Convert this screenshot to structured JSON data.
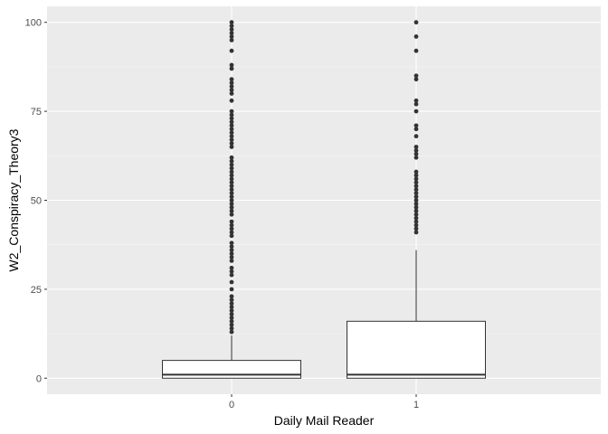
{
  "chart_data": {
    "type": "boxplot",
    "title": "",
    "xlabel": "Daily Mail Reader",
    "ylabel": "W2_Conspiracy_Theory3",
    "ylim": [
      -4.5,
      104.5
    ],
    "yticks": [
      0,
      25,
      50,
      75,
      100
    ],
    "categories": [
      "0",
      "1"
    ],
    "boxes": [
      {
        "category": "0",
        "min": 0,
        "q1": 0,
        "median": 1,
        "q3": 5,
        "whisker_high": 12,
        "outliers": [
          13,
          14,
          15,
          16,
          17,
          18,
          19,
          20,
          21,
          22,
          23,
          25,
          27,
          29,
          30,
          31,
          33,
          34,
          35,
          36,
          37,
          38,
          40,
          41,
          42,
          43,
          44,
          46,
          47,
          48,
          49,
          50,
          51,
          52,
          53,
          54,
          55,
          56,
          57,
          58,
          59,
          60,
          61,
          62,
          65,
          66,
          67,
          68,
          69,
          70,
          71,
          72,
          73,
          74,
          75,
          78,
          80,
          81,
          82,
          83,
          84,
          87,
          88,
          92,
          95,
          96,
          97,
          98,
          99,
          100
        ]
      },
      {
        "category": "1",
        "min": 0,
        "q1": 0,
        "median": 1,
        "q3": 16,
        "whisker_high": 36,
        "outliers": [
          41,
          42,
          43,
          44,
          45,
          46,
          47,
          48,
          49,
          50,
          51,
          52,
          53,
          54,
          55,
          56,
          57,
          58,
          62,
          63,
          64,
          65,
          68,
          70,
          71,
          75,
          77,
          78,
          84,
          85,
          92,
          96,
          100
        ]
      }
    ],
    "colors": {
      "panel": "#ebebeb",
      "grid_major": "#ffffff",
      "grid_minor": "#f5f5f5",
      "box_fill": "#ffffff",
      "box_line": "#333333",
      "outlier": "#333333",
      "tick_text": "#4d4d4d",
      "title_text": "#000000"
    }
  }
}
